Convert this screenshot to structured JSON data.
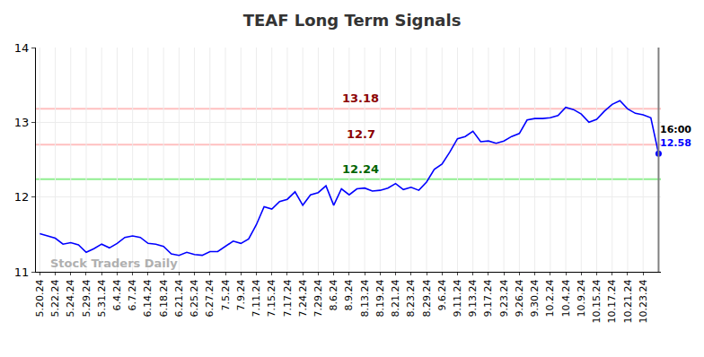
{
  "chart_data": {
    "type": "line",
    "title": "TEAF Long Term Signals",
    "categories": [
      "5.20.24",
      null,
      "5.22.24",
      null,
      "5.24.24",
      null,
      "5.29.24",
      null,
      "5.31.24",
      null,
      "6.4.24",
      null,
      "6.7.24",
      null,
      "6.14.24",
      null,
      "6.18.24",
      null,
      "6.21.24",
      null,
      "6.25.24",
      null,
      "6.27.24",
      null,
      "7.5.24",
      null,
      "7.9.24",
      null,
      "7.11.24",
      null,
      "7.15.24",
      null,
      "7.17.24",
      null,
      "7.24.24",
      null,
      "7.29.24",
      null,
      "8.6.24",
      null,
      "8.9.24",
      null,
      "8.13.24",
      null,
      "8.19.24",
      null,
      "8.21.24",
      null,
      "8.23.24",
      null,
      "8.29.24",
      null,
      "9.6.24",
      null,
      "9.11.24",
      null,
      "9.13.24",
      null,
      "9.17.24",
      null,
      "9.23.24",
      null,
      "9.26.24",
      null,
      "9.30.24",
      null,
      "10.2.24",
      null,
      "10.4.24",
      null,
      "10.9.24",
      null,
      "10.15.24",
      null,
      "10.17.24",
      null,
      "10.21.24",
      null,
      "10.23.24",
      null,
      null
    ],
    "values": [
      11.51,
      11.48,
      11.45,
      11.37,
      11.39,
      11.36,
      11.26,
      11.31,
      11.37,
      11.32,
      11.38,
      11.46,
      11.48,
      11.46,
      11.38,
      11.37,
      11.34,
      11.24,
      11.22,
      11.26,
      11.23,
      11.22,
      11.27,
      11.27,
      11.34,
      11.41,
      11.38,
      11.44,
      11.63,
      11.87,
      11.84,
      11.94,
      11.97,
      12.07,
      11.89,
      12.03,
      12.06,
      12.15,
      11.89,
      12.11,
      12.03,
      12.11,
      12.12,
      12.08,
      12.09,
      12.12,
      12.18,
      12.1,
      12.13,
      12.09,
      12.2,
      12.37,
      12.44,
      12.6,
      12.78,
      12.81,
      12.88,
      12.74,
      12.75,
      12.72,
      12.75,
      12.81,
      12.85,
      13.03,
      13.05,
      13.05,
      13.06,
      13.09,
      13.2,
      13.17,
      13.11,
      13.0,
      13.04,
      13.15,
      13.24,
      13.29,
      13.18,
      13.12,
      13.1,
      13.06,
      12.58
    ],
    "color": "#0000ff",
    "reference_lines": [
      {
        "value": 13.18,
        "label": "13.18",
        "color": "#ffc0c0",
        "label_color": "#8b0000"
      },
      {
        "value": 12.7,
        "label": "12.7",
        "color": "#ffc0c0",
        "label_color": "#8b0000"
      },
      {
        "value": 12.24,
        "label": "12.24",
        "color": "#90ee90",
        "label_color": "#006400"
      }
    ],
    "end_marker": {
      "time": "16:00",
      "label": "12.58"
    },
    "watermark": "Stock Traders Daily",
    "ylim": [
      11,
      14
    ],
    "yticks": [
      11,
      12,
      13,
      14
    ],
    "grid": true
  }
}
